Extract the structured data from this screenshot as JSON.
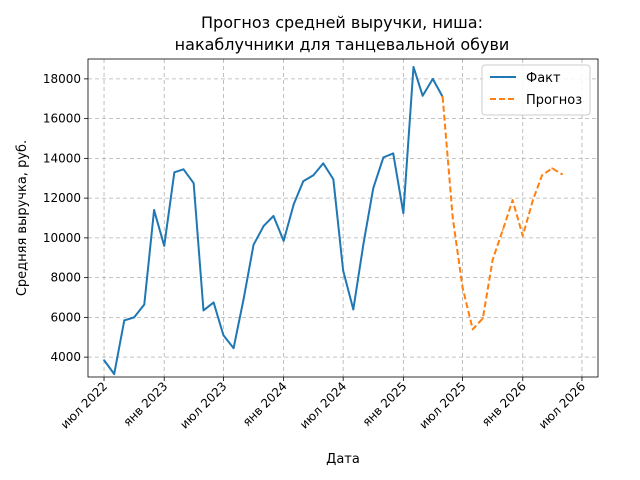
{
  "chart_data": {
    "type": "line",
    "title": [
      "Прогноз средней выручки, ниша:",
      "накаблучники для танцевальной обуви"
    ],
    "xlabel": "Дата",
    "ylabel": "Средняя выручка, руб.",
    "ylim": [
      3000,
      19000
    ],
    "yticks": [
      4000,
      6000,
      8000,
      10000,
      12000,
      14000,
      16000,
      18000
    ],
    "xlim": [
      "2022-05-13",
      "2026-08-19"
    ],
    "xticks": [
      {
        "date": "2022-07-01",
        "label": "июл 2022"
      },
      {
        "date": "2023-01-01",
        "label": "янв 2023"
      },
      {
        "date": "2023-07-01",
        "label": "июл 2023"
      },
      {
        "date": "2024-01-01",
        "label": "янв 2024"
      },
      {
        "date": "2024-07-01",
        "label": "июл 2024"
      },
      {
        "date": "2025-01-01",
        "label": "янв 2025"
      },
      {
        "date": "2025-07-01",
        "label": "июл 2025"
      },
      {
        "date": "2026-01-01",
        "label": "янв 2026"
      },
      {
        "date": "2026-07-01",
        "label": "июл 2026"
      }
    ],
    "grid": true,
    "legend_position": "top-right",
    "series": [
      {
        "name": "Факт",
        "color": "#1f77b4",
        "style": "solid",
        "x": [
          "2022-07-01",
          "2022-08-01",
          "2022-09-01",
          "2022-10-01",
          "2022-11-01",
          "2022-12-01",
          "2023-01-01",
          "2023-02-01",
          "2023-03-01",
          "2023-04-01",
          "2023-05-01",
          "2023-06-01",
          "2023-07-01",
          "2023-08-01",
          "2023-09-01",
          "2023-10-01",
          "2023-11-01",
          "2023-12-01",
          "2024-01-01",
          "2024-02-01",
          "2024-03-01",
          "2024-04-01",
          "2024-05-01",
          "2024-06-01",
          "2024-07-01",
          "2024-08-01",
          "2024-09-01",
          "2024-10-01",
          "2024-11-01",
          "2024-12-01",
          "2025-01-01",
          "2025-02-01",
          "2025-03-01",
          "2025-04-01",
          "2025-05-01"
        ],
        "values": [
          3850,
          3150,
          5850,
          6000,
          6650,
          11400,
          9600,
          13300,
          13450,
          12750,
          6350,
          6750,
          5100,
          4450,
          6950,
          9650,
          10600,
          11100,
          9850,
          11700,
          12850,
          13150,
          13750,
          12950,
          8350,
          6400,
          9700,
          12500,
          14050,
          14250,
          11250,
          18600,
          17150,
          18000,
          17100
        ]
      },
      {
        "name": "Прогноз",
        "color": "#ff7f0e",
        "style": "dashed",
        "x": [
          "2025-05-01",
          "2025-06-01",
          "2025-07-01",
          "2025-08-01",
          "2025-09-01",
          "2025-10-01",
          "2025-11-01",
          "2025-12-01",
          "2026-01-01",
          "2026-02-01",
          "2026-03-01",
          "2026-04-01",
          "2026-05-01"
        ],
        "values": [
          17100,
          11000,
          7500,
          5400,
          5950,
          8900,
          10400,
          11900,
          10100,
          11900,
          13150,
          13500,
          13200
        ]
      }
    ]
  }
}
